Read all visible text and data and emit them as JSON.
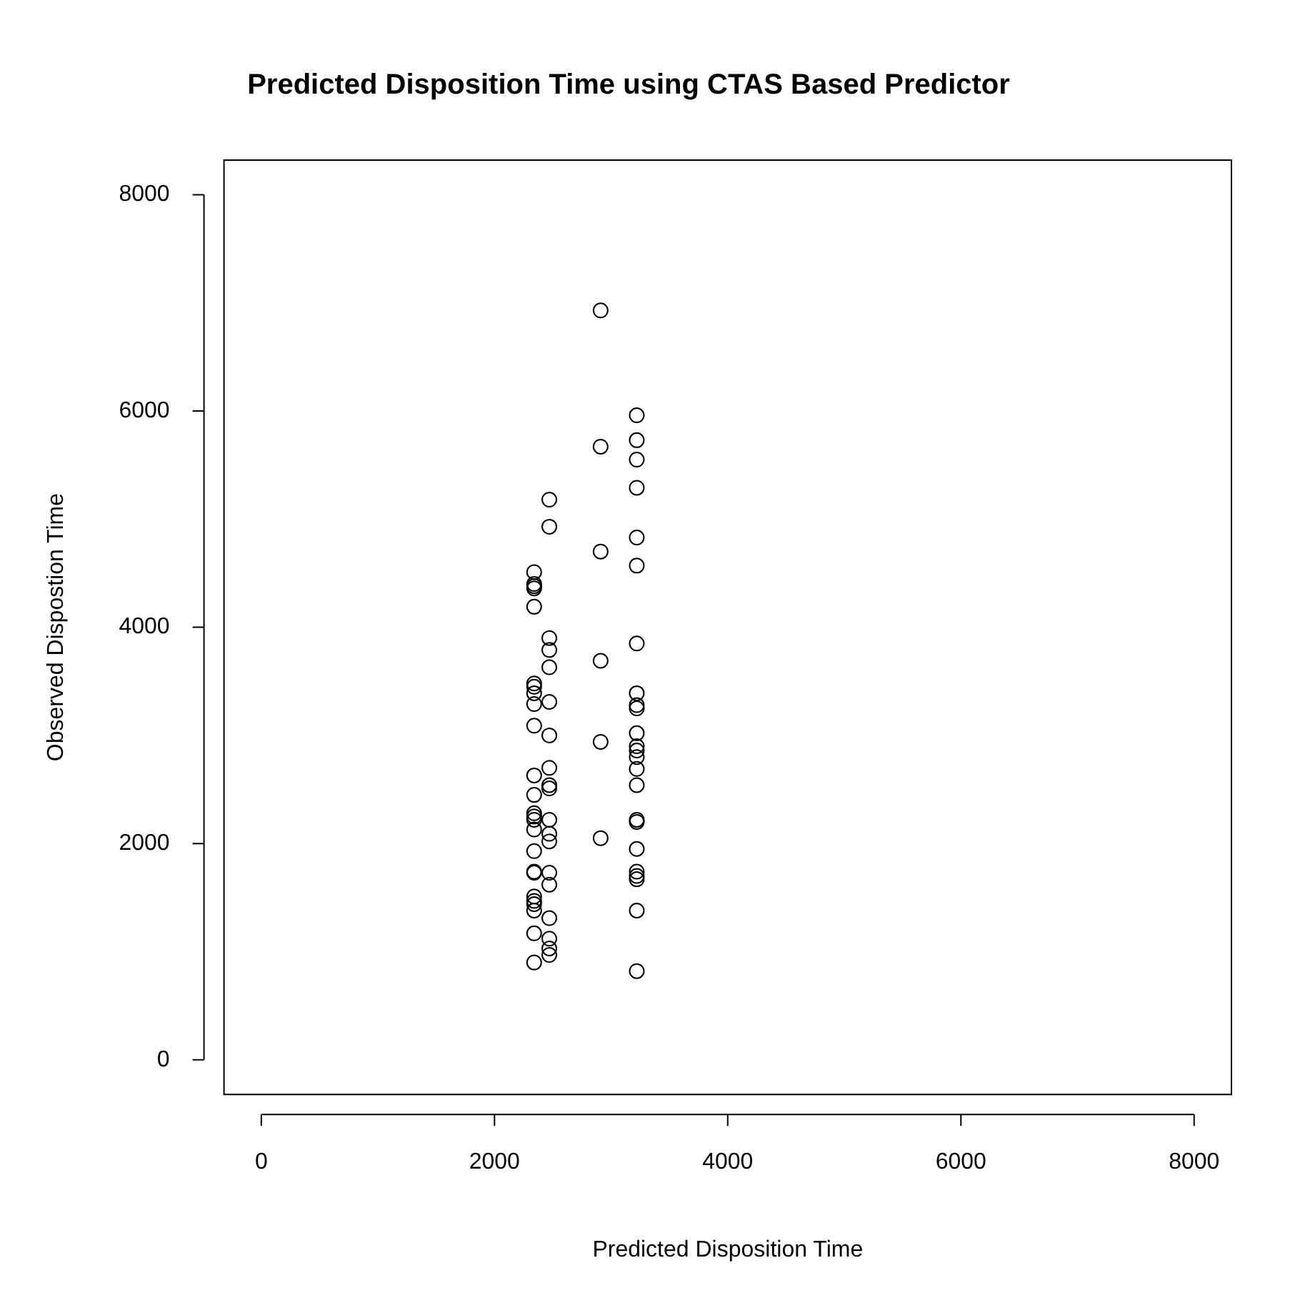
{
  "chart_data": {
    "type": "scatter",
    "title": "Predicted Disposition Time using CTAS Based Predictor",
    "xlabel": "Predicted Disposition Time",
    "ylabel": "Observed Dispostion Time",
    "x": [
      2340,
      2340,
      2340,
      2340,
      2340,
      2340,
      2340,
      2340,
      2340,
      2340,
      2340,
      2340,
      2340,
      2340,
      2340,
      2340,
      2340,
      2340,
      2340,
      2340,
      2340,
      2340,
      2340,
      2340,
      2340,
      2470,
      2470,
      2470,
      2470,
      2470,
      2470,
      2470,
      2470,
      2470,
      2470,
      2470,
      2470,
      2470,
      2470,
      2470,
      2470,
      2470,
      2470,
      2470,
      2910,
      2910,
      2910,
      2910,
      2910,
      2910,
      3220,
      3220,
      3220,
      3220,
      3220,
      3220,
      3220,
      3220,
      3220,
      3220,
      3220,
      3220,
      3220,
      3220,
      3220,
      3220,
      3220,
      3220,
      3220,
      3220,
      3220,
      3220,
      3220,
      3220
    ],
    "series": [
      {
        "color": "#000000",
        "values": [
          4510,
          4400,
          4380,
          4360,
          4190,
          3480,
          3450,
          3390,
          3290,
          3090,
          2630,
          2450,
          2280,
          2250,
          2220,
          2130,
          1930,
          1740,
          1730,
          1510,
          1470,
          1440,
          1380,
          1170,
          900,
          5180,
          4930,
          3900,
          3790,
          3630,
          3310,
          3000,
          2700,
          2540,
          2510,
          2220,
          2090,
          2020,
          1730,
          1620,
          1310,
          1120,
          1030,
          970,
          6930,
          5670,
          4700,
          3690,
          2940,
          2050,
          5960,
          5730,
          5550,
          5290,
          4830,
          4570,
          3850,
          3390,
          3280,
          3250,
          3020,
          2900,
          2860,
          2800,
          2690,
          2540,
          2220,
          2200,
          1950,
          1740,
          1700,
          1670,
          1380,
          820
        ]
      }
    ],
    "xlim": [
      -320,
      8320
    ],
    "xticks": [
      0,
      2000,
      4000,
      6000,
      8000
    ],
    "ylim": [
      -320,
      8320
    ],
    "yticks": [
      0,
      2000,
      4000,
      6000,
      8000
    ],
    "marker": "circle",
    "grid": false,
    "legend": false
  }
}
